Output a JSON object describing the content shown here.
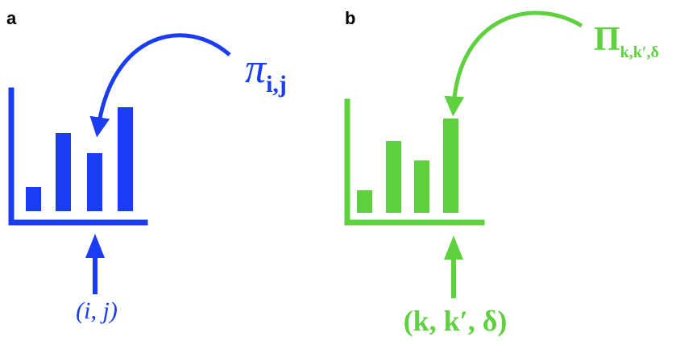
{
  "panels": [
    {
      "label": "a",
      "color": "#1a3cf5",
      "symbol_base": "π",
      "symbol_sub": "i,j",
      "index_label": "(i, j)"
    },
    {
      "label": "b",
      "color": "#5fd13f",
      "symbol_base": "Π",
      "symbol_sub": "k,k′,δ",
      "index_label": "(k, k′, δ)"
    }
  ]
}
